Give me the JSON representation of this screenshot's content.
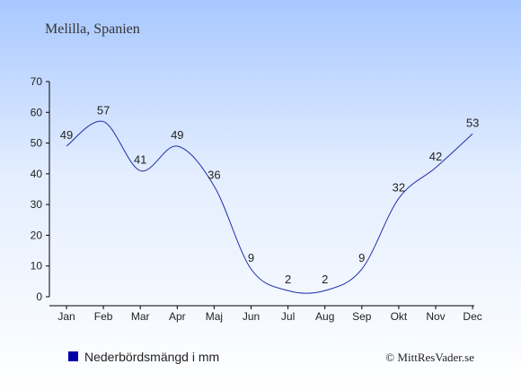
{
  "chart_data": {
    "type": "line",
    "title": "Melilla, Spanien",
    "categories": [
      "Jan",
      "Feb",
      "Mar",
      "Apr",
      "Maj",
      "Jun",
      "Jul",
      "Aug",
      "Sep",
      "Okt",
      "Nov",
      "Dec"
    ],
    "series": [
      {
        "name": "Nederbördsmängd i mm",
        "values": [
          49,
          57,
          41,
          49,
          36,
          9,
          2,
          2,
          9,
          32,
          42,
          53
        ],
        "color": "#1f2fa8"
      }
    ],
    "ylim": [
      0,
      70
    ],
    "yticks": [
      0,
      10,
      20,
      30,
      40,
      50,
      60,
      70
    ],
    "grid": false,
    "legend_position": "bottom-left",
    "legend_marker_color": "#0000aa"
  },
  "copyright": "© MittResVader.se"
}
